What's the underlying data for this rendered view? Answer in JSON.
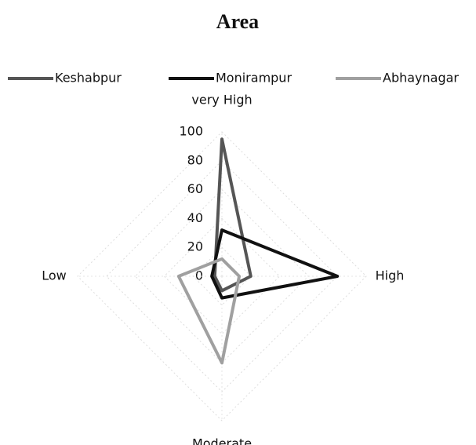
{
  "chart_data": {
    "type": "radar",
    "title": "Area",
    "categories": [
      "very High",
      "High",
      "Moderate",
      "Low"
    ],
    "series": [
      {
        "name": "Keshabpur",
        "color": "#555555",
        "values": [
          95,
          20,
          10,
          5
        ]
      },
      {
        "name": "Monirampur",
        "color": "#111111",
        "values": [
          32,
          80,
          15,
          7
        ]
      },
      {
        "name": "Abhaynagar",
        "color": "#a0a0a0",
        "values": [
          12,
          12,
          60,
          30
        ]
      }
    ],
    "ylim": [
      0,
      100
    ],
    "yticks": [
      0,
      20,
      40,
      60,
      80,
      100
    ],
    "grid": true,
    "legend": "top"
  }
}
